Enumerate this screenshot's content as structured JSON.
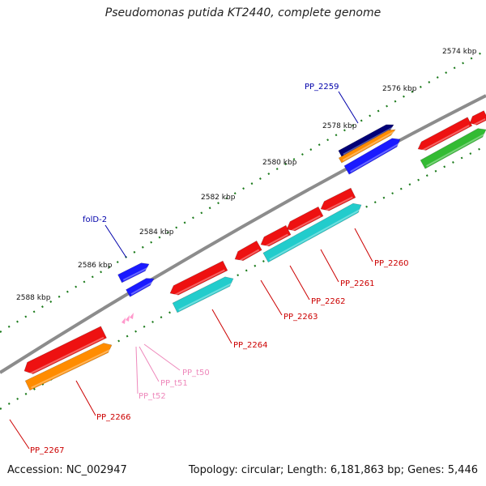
{
  "title": "Pseudomonas putida KT2440, complete genome",
  "footer": {
    "accession": "Accession: NC_002947",
    "summary": "Topology: circular; Length: 6,181,863 bp; Genes: 5,446"
  },
  "colors": {
    "backbone": "#8c8c8c",
    "tick": "#1a7a1a",
    "gene_label": "#cc0000",
    "blue_label": "#0000aa",
    "trna_label": "#ee88bb"
  },
  "scale_labels": [
    "2574 kbp",
    "2576 kbp",
    "2578 kbp",
    "2580 kbp",
    "2582 kbp",
    "2584 kbp",
    "2586 kbp",
    "2588 kbp"
  ],
  "gene_labels": [
    {
      "text": "PP_2259",
      "color": "blue"
    },
    {
      "text": "folD-2",
      "color": "blue"
    },
    {
      "text": "PP_2260",
      "color": "red"
    },
    {
      "text": "PP_2261",
      "color": "red"
    },
    {
      "text": "PP_2262",
      "color": "red"
    },
    {
      "text": "PP_2263",
      "color": "red"
    },
    {
      "text": "PP_2264",
      "color": "red"
    },
    {
      "text": "PP_2266",
      "color": "red"
    },
    {
      "text": "PP_2267",
      "color": "red"
    },
    {
      "text": "PP_t50",
      "color": "pink"
    },
    {
      "text": "PP_t51",
      "color": "pink"
    },
    {
      "text": "PP_t52",
      "color": "pink"
    }
  ]
}
